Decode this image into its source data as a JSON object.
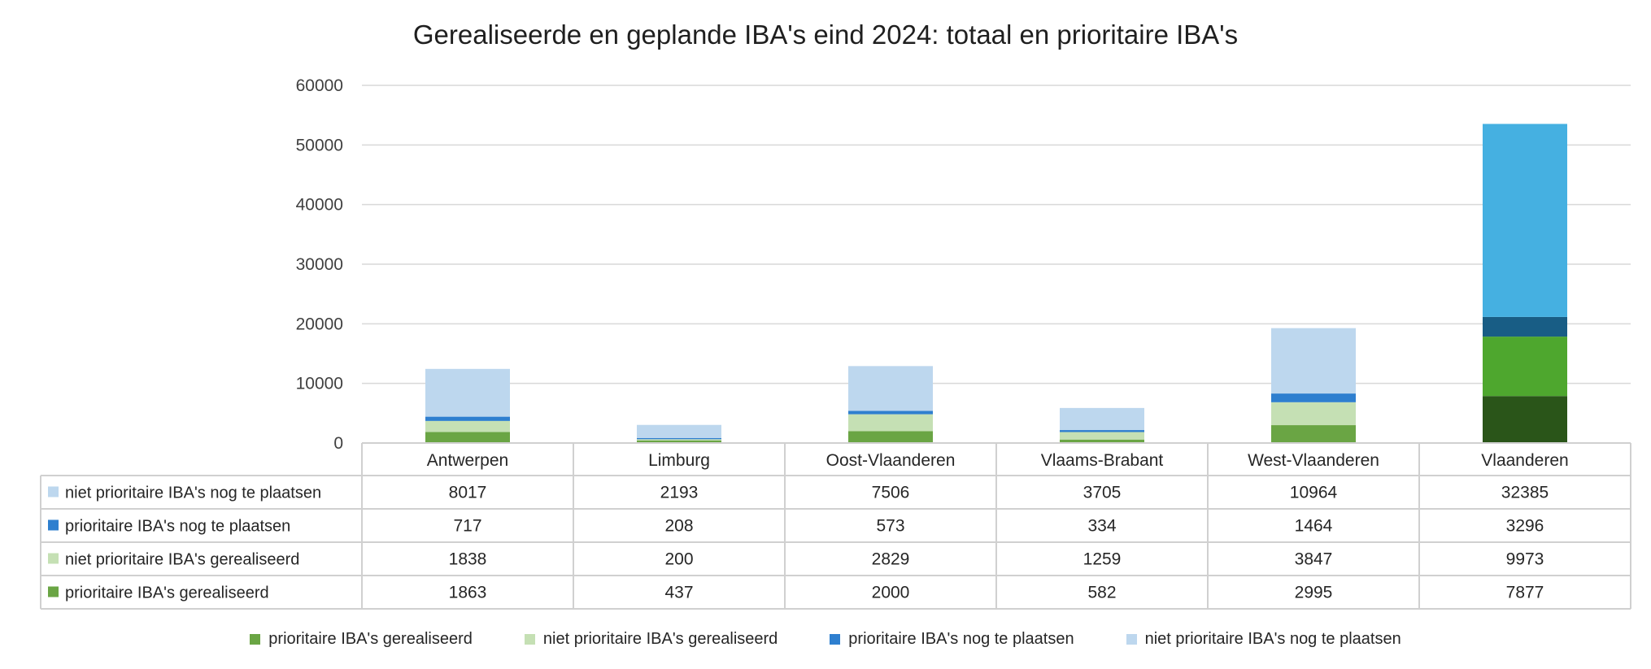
{
  "chart_data": {
    "type": "bar",
    "stacked": true,
    "title": "Gerealiseerde en geplande IBA's eind 2024: totaal en prioritaire IBA's",
    "xlabel": "",
    "ylabel": "",
    "ylim": [
      0,
      60000
    ],
    "yticks": [
      0,
      10000,
      20000,
      30000,
      40000,
      50000,
      60000
    ],
    "grid": true,
    "legend_position": "bottom",
    "data_table": true,
    "categories": [
      "Antwerpen",
      "Limburg",
      "Oost-Vlaanderen",
      "Vlaams-Brabant",
      "West-Vlaanderen",
      "Vlaanderen"
    ],
    "series": [
      {
        "name": "prioritaire IBA's gerealiseerd",
        "color": "#6aa544",
        "values": [
          1863,
          437,
          2000,
          582,
          2995,
          7877
        ]
      },
      {
        "name": "niet prioritaire IBA's gerealiseerd",
        "color": "#c5e0b4",
        "values": [
          1838,
          200,
          2829,
          1259,
          3847,
          9973
        ]
      },
      {
        "name": "prioritaire IBA's nog te plaatsen",
        "color": "#2e7fcf",
        "values": [
          717,
          208,
          573,
          334,
          1464,
          3296
        ]
      },
      {
        "name": "niet prioritaire IBA's nog te plaatsen",
        "color": "#bdd7ee",
        "values": [
          8017,
          2193,
          7506,
          3705,
          10964,
          32385
        ]
      }
    ],
    "highlight_category": {
      "name": "Vlaanderen",
      "colors": [
        "#2a5519",
        "#4ea72e",
        "#185d85",
        "#45b0e1"
      ]
    }
  }
}
